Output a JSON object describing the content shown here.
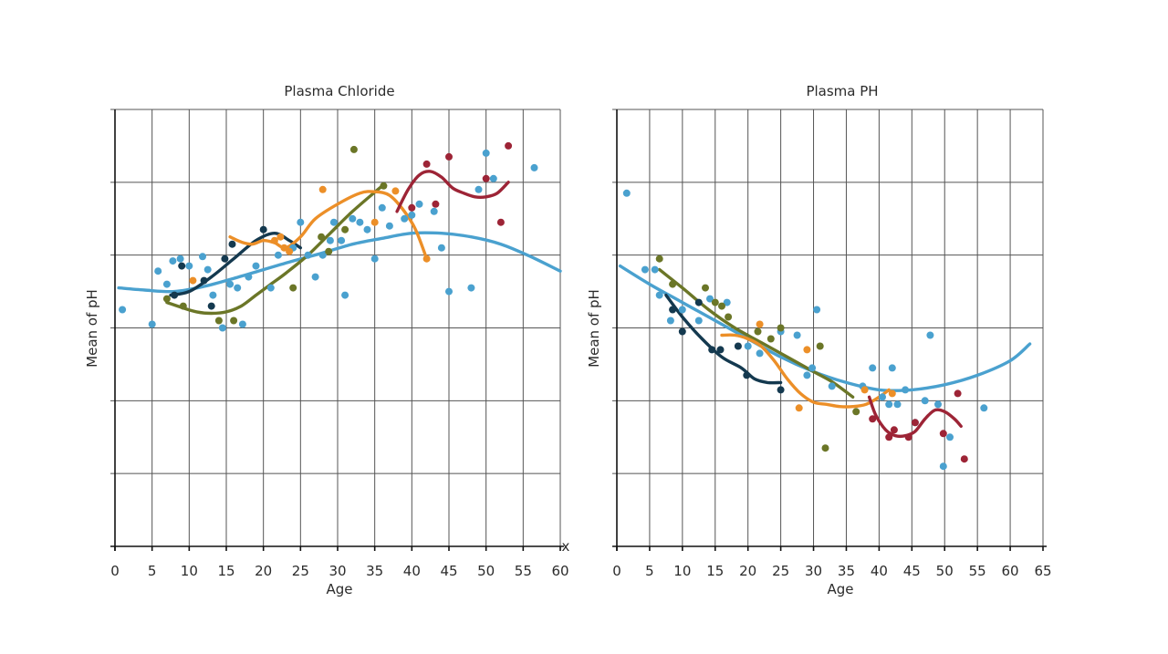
{
  "colors": {
    "navy": "#14394f",
    "olive": "#6b7627",
    "orange": "#ec8f28",
    "maroon": "#9d2436",
    "blue": "#4aa1cf"
  },
  "chart_data": [
    {
      "type": "scatter",
      "title": "Plasma Chloride",
      "xlabel": "Age",
      "ylabel": "Mean of pH",
      "xticks": [
        0,
        5,
        10,
        15,
        20,
        25,
        30,
        35,
        40,
        45,
        50,
        55,
        60
      ],
      "xlim": [
        0,
        60
      ],
      "ylim": [
        0,
        6
      ],
      "y_tick_labels_shown": false,
      "grid": true,
      "corner_mark": "x",
      "series": [
        {
          "color": "blue",
          "points": [
            [
              1,
              3.25
            ],
            [
              5,
              3.05
            ],
            [
              5.8,
              3.78
            ],
            [
              7,
              3.6
            ],
            [
              7.8,
              3.92
            ],
            [
              8.8,
              3.95
            ],
            [
              10,
              3.85
            ],
            [
              11.8,
              3.98
            ],
            [
              12.5,
              3.8
            ],
            [
              13.2,
              3.45
            ],
            [
              14.5,
              3.0
            ],
            [
              15.5,
              3.6
            ],
            [
              16.5,
              3.55
            ],
            [
              17.2,
              3.05
            ],
            [
              18,
              3.7
            ],
            [
              19,
              3.85
            ],
            [
              21,
              3.55
            ],
            [
              22,
              4.0
            ],
            [
              24,
              4.1
            ],
            [
              25,
              4.45
            ],
            [
              26,
              4.0
            ],
            [
              27,
              3.7
            ],
            [
              28,
              4.0
            ],
            [
              29,
              4.2
            ],
            [
              29.5,
              4.45
            ],
            [
              30.5,
              4.2
            ],
            [
              31,
              3.45
            ],
            [
              32,
              4.5
            ],
            [
              33,
              4.45
            ],
            [
              34,
              4.35
            ],
            [
              35,
              3.95
            ],
            [
              36,
              4.65
            ],
            [
              37,
              4.4
            ],
            [
              39,
              4.5
            ],
            [
              40,
              4.55
            ],
            [
              41,
              4.7
            ],
            [
              43,
              4.6
            ],
            [
              44,
              4.1
            ],
            [
              45,
              3.5
            ],
            [
              48,
              3.55
            ],
            [
              49,
              4.9
            ],
            [
              50,
              5.4
            ],
            [
              51,
              5.05
            ],
            [
              56.5,
              5.2
            ]
          ],
          "trend": [
            [
              0.5,
              3.55
            ],
            [
              4,
              3.52
            ],
            [
              8,
              3.5
            ],
            [
              12,
              3.57
            ],
            [
              16,
              3.68
            ],
            [
              20,
              3.8
            ],
            [
              24,
              3.92
            ],
            [
              28,
              4.03
            ],
            [
              32,
              4.15
            ],
            [
              36,
              4.23
            ],
            [
              40,
              4.3
            ],
            [
              44,
              4.3
            ],
            [
              48,
              4.25
            ],
            [
              52,
              4.15
            ],
            [
              56,
              3.98
            ],
            [
              60,
              3.78
            ]
          ]
        },
        {
          "color": "navy",
          "points": [
            [
              8,
              3.45
            ],
            [
              9,
              3.85
            ],
            [
              12,
              3.65
            ],
            [
              13,
              3.3
            ],
            [
              14.8,
              3.95
            ],
            [
              15.8,
              4.15
            ],
            [
              20,
              4.35
            ]
          ],
          "trend": [
            [
              7.5,
              3.45
            ],
            [
              10,
              3.5
            ],
            [
              13,
              3.7
            ],
            [
              16,
              3.95
            ],
            [
              19,
              4.2
            ],
            [
              21.5,
              4.3
            ],
            [
              23.5,
              4.2
            ],
            [
              25,
              4.1
            ]
          ]
        },
        {
          "color": "olive",
          "points": [
            [
              7,
              3.4
            ],
            [
              9.2,
              3.3
            ],
            [
              14,
              3.1
            ],
            [
              16,
              3.1
            ],
            [
              24,
              3.55
            ],
            [
              27.8,
              4.25
            ],
            [
              28.8,
              4.05
            ],
            [
              31,
              4.35
            ],
            [
              32.2,
              5.45
            ],
            [
              36.2,
              4.95
            ]
          ],
          "trend": [
            [
              7,
              3.35
            ],
            [
              9,
              3.28
            ],
            [
              11,
              3.22
            ],
            [
              13,
              3.2
            ],
            [
              15,
              3.22
            ],
            [
              17,
              3.3
            ],
            [
              19,
              3.45
            ],
            [
              21,
              3.6
            ],
            [
              23,
              3.75
            ],
            [
              26,
              4.0
            ],
            [
              29,
              4.3
            ],
            [
              32,
              4.6
            ],
            [
              36,
              4.95
            ]
          ]
        },
        {
          "color": "orange",
          "points": [
            [
              10.5,
              3.65
            ],
            [
              21.5,
              4.2
            ],
            [
              22.3,
              4.25
            ],
            [
              22.8,
              4.1
            ],
            [
              23.5,
              4.05
            ],
            [
              28,
              4.9
            ],
            [
              35,
              4.45
            ],
            [
              37.8,
              4.88
            ],
            [
              42,
              3.95
            ]
          ],
          "trend": [
            [
              15.5,
              4.25
            ],
            [
              17,
              4.18
            ],
            [
              18.5,
              4.15
            ],
            [
              20,
              4.2
            ],
            [
              21.5,
              4.17
            ],
            [
              23,
              4.1
            ],
            [
              25,
              4.25
            ],
            [
              27,
              4.5
            ],
            [
              30,
              4.7
            ],
            [
              33,
              4.85
            ],
            [
              35,
              4.87
            ],
            [
              37,
              4.82
            ],
            [
              39,
              4.6
            ],
            [
              40.5,
              4.35
            ],
            [
              42,
              3.95
            ]
          ]
        },
        {
          "color": "maroon",
          "points": [
            [
              40,
              4.65
            ],
            [
              42,
              5.25
            ],
            [
              43.2,
              4.7
            ],
            [
              45,
              5.35
            ],
            [
              50,
              5.05
            ],
            [
              52,
              4.45
            ],
            [
              53,
              5.5
            ]
          ],
          "trend": [
            [
              38,
              4.6
            ],
            [
              39.5,
              4.9
            ],
            [
              41,
              5.1
            ],
            [
              42.5,
              5.15
            ],
            [
              44,
              5.07
            ],
            [
              45.5,
              4.92
            ],
            [
              47,
              4.85
            ],
            [
              48.5,
              4.8
            ],
            [
              50,
              4.8
            ],
            [
              51.5,
              4.85
            ],
            [
              53,
              5.0
            ]
          ]
        }
      ]
    },
    {
      "type": "scatter",
      "title": "Plasma PH",
      "xlabel": "Age",
      "ylabel": "Mean of pH",
      "xticks": [
        0,
        5,
        10,
        15,
        20,
        25,
        30,
        35,
        40,
        45,
        50,
        55,
        60,
        65
      ],
      "xlim": [
        0,
        65
      ],
      "ylim": [
        0,
        6
      ],
      "y_tick_labels_shown": false,
      "grid": true,
      "series": [
        {
          "color": "blue",
          "points": [
            [
              1.5,
              4.85
            ],
            [
              4.3,
              3.8
            ],
            [
              5.8,
              3.8
            ],
            [
              6.5,
              3.45
            ],
            [
              8.2,
              3.1
            ],
            [
              10,
              3.25
            ],
            [
              12.5,
              3.1
            ],
            [
              14.2,
              3.4
            ],
            [
              16.8,
              3.35
            ],
            [
              20,
              2.75
            ],
            [
              21.8,
              2.65
            ],
            [
              25,
              2.95
            ],
            [
              27.5,
              2.9
            ],
            [
              29,
              2.35
            ],
            [
              29.8,
              2.45
            ],
            [
              30.5,
              3.25
            ],
            [
              32.8,
              2.2
            ],
            [
              37.5,
              2.2
            ],
            [
              39,
              2.45
            ],
            [
              40.5,
              2.05
            ],
            [
              41.5,
              1.95
            ],
            [
              42,
              2.45
            ],
            [
              42.8,
              1.95
            ],
            [
              44,
              2.15
            ],
            [
              45.5,
              1.7
            ],
            [
              47,
              2.0
            ],
            [
              47.8,
              2.9
            ],
            [
              49,
              1.95
            ],
            [
              49.8,
              1.1
            ],
            [
              50.8,
              1.5
            ],
            [
              56,
              1.9
            ]
          ],
          "trend": [
            [
              0.5,
              3.85
            ],
            [
              5,
              3.6
            ],
            [
              10,
              3.35
            ],
            [
              15,
              3.1
            ],
            [
              20,
              2.85
            ],
            [
              25,
              2.6
            ],
            [
              30,
              2.4
            ],
            [
              35,
              2.25
            ],
            [
              40,
              2.15
            ],
            [
              45,
              2.15
            ],
            [
              50,
              2.22
            ],
            [
              55,
              2.35
            ],
            [
              60,
              2.55
            ],
            [
              63,
              2.78
            ]
          ]
        },
        {
          "color": "navy",
          "points": [
            [
              8.5,
              3.25
            ],
            [
              12.5,
              3.35
            ],
            [
              10,
              2.95
            ],
            [
              14.5,
              2.7
            ],
            [
              15.8,
              2.7
            ],
            [
              18.5,
              2.75
            ],
            [
              19.8,
              2.35
            ],
            [
              25,
              2.15
            ]
          ],
          "trend": [
            [
              7.5,
              3.45
            ],
            [
              10,
              3.15
            ],
            [
              13,
              2.85
            ],
            [
              16,
              2.6
            ],
            [
              19,
              2.45
            ],
            [
              21,
              2.3
            ],
            [
              23,
              2.25
            ],
            [
              25,
              2.25
            ]
          ]
        },
        {
          "color": "olive",
          "points": [
            [
              6.5,
              3.95
            ],
            [
              8.5,
              3.6
            ],
            [
              13.5,
              3.55
            ],
            [
              15,
              3.35
            ],
            [
              16,
              3.3
            ],
            [
              17,
              3.15
            ],
            [
              21.5,
              2.95
            ],
            [
              23.5,
              2.85
            ],
            [
              25,
              3.0
            ],
            [
              31,
              2.75
            ],
            [
              31.8,
              1.35
            ],
            [
              36.5,
              1.85
            ]
          ],
          "trend": [
            [
              6.5,
              3.8
            ],
            [
              10,
              3.55
            ],
            [
              14,
              3.25
            ],
            [
              18,
              3.0
            ],
            [
              22,
              2.8
            ],
            [
              26,
              2.6
            ],
            [
              30,
              2.4
            ],
            [
              33,
              2.25
            ],
            [
              36,
              2.05
            ]
          ]
        },
        {
          "color": "orange",
          "points": [
            [
              21.8,
              3.05
            ],
            [
              27.8,
              1.9
            ],
            [
              29,
              2.7
            ],
            [
              37.8,
              2.15
            ],
            [
              42,
              2.1
            ]
          ],
          "trend": [
            [
              16,
              2.9
            ],
            [
              18,
              2.9
            ],
            [
              20,
              2.85
            ],
            [
              22,
              2.75
            ],
            [
              24,
              2.55
            ],
            [
              26,
              2.3
            ],
            [
              28,
              2.1
            ],
            [
              30,
              1.98
            ],
            [
              32,
              1.95
            ],
            [
              34,
              1.92
            ],
            [
              36,
              1.92
            ],
            [
              38,
              1.95
            ],
            [
              40,
              2.05
            ],
            [
              41.5,
              2.15
            ]
          ]
        },
        {
          "color": "maroon",
          "points": [
            [
              39,
              1.75
            ],
            [
              41.5,
              1.5
            ],
            [
              42.3,
              1.6
            ],
            [
              44.5,
              1.5
            ],
            [
              45.5,
              1.7
            ],
            [
              49.8,
              1.55
            ],
            [
              52,
              2.1
            ],
            [
              53,
              1.2
            ]
          ],
          "trend": [
            [
              38.5,
              2.05
            ],
            [
              39.5,
              1.8
            ],
            [
              41,
              1.6
            ],
            [
              42.5,
              1.52
            ],
            [
              44,
              1.52
            ],
            [
              45.5,
              1.58
            ],
            [
              47,
              1.75
            ],
            [
              48.5,
              1.87
            ],
            [
              50,
              1.85
            ],
            [
              51.5,
              1.75
            ],
            [
              52.5,
              1.65
            ]
          ]
        }
      ]
    }
  ]
}
